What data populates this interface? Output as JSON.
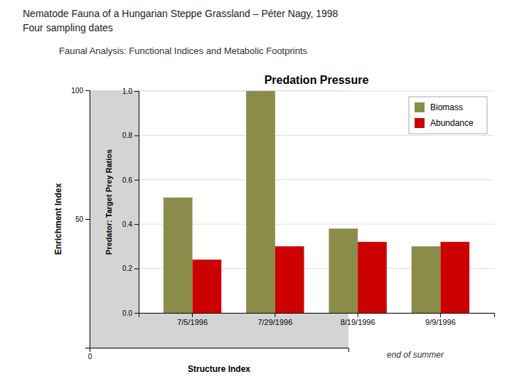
{
  "chart_data": [
    {
      "type": "axes",
      "title": [
        "Nematode Fauna of a Hungarian Steppe Grassland – Péter Nagy, 1998",
        "Four sampling dates"
      ],
      "subtitle": "Faunal Analysis: Functional Indices and Metabolic Footprints",
      "annotations": [
        "end of summer"
      ],
      "xlabel": "Structure Index",
      "ylabel": "Enrichment Index",
      "xlim": [
        0,
        100
      ],
      "xticks": [
        0
      ],
      "ylim": [
        0,
        100
      ],
      "yticks": [
        50,
        100
      ],
      "grid": false
    },
    {
      "type": "bar",
      "title": "Predation Pressure",
      "ylabel": "Predator: Target Prey Ratios",
      "categories": [
        "7/5/1996",
        "7/29/1996",
        "8/19/1996",
        "9/9/1996"
      ],
      "series": [
        {
          "name": "Biomass",
          "color": "#8B8C4A",
          "values": [
            0.52,
            1.0,
            0.38,
            0.3
          ]
        },
        {
          "name": "Abundance",
          "color": "#CC0000",
          "values": [
            0.24,
            0.3,
            0.32,
            0.32
          ]
        }
      ],
      "ylim": [
        0.0,
        1.0
      ],
      "yticks": [
        {
          "value": 0.0,
          "label": "0.0"
        },
        0.2,
        0.4,
        0.6,
        0.8,
        {
          "value": 1.0,
          "label": "1.0"
        }
      ],
      "grid": true,
      "legend": "upper right"
    }
  ]
}
